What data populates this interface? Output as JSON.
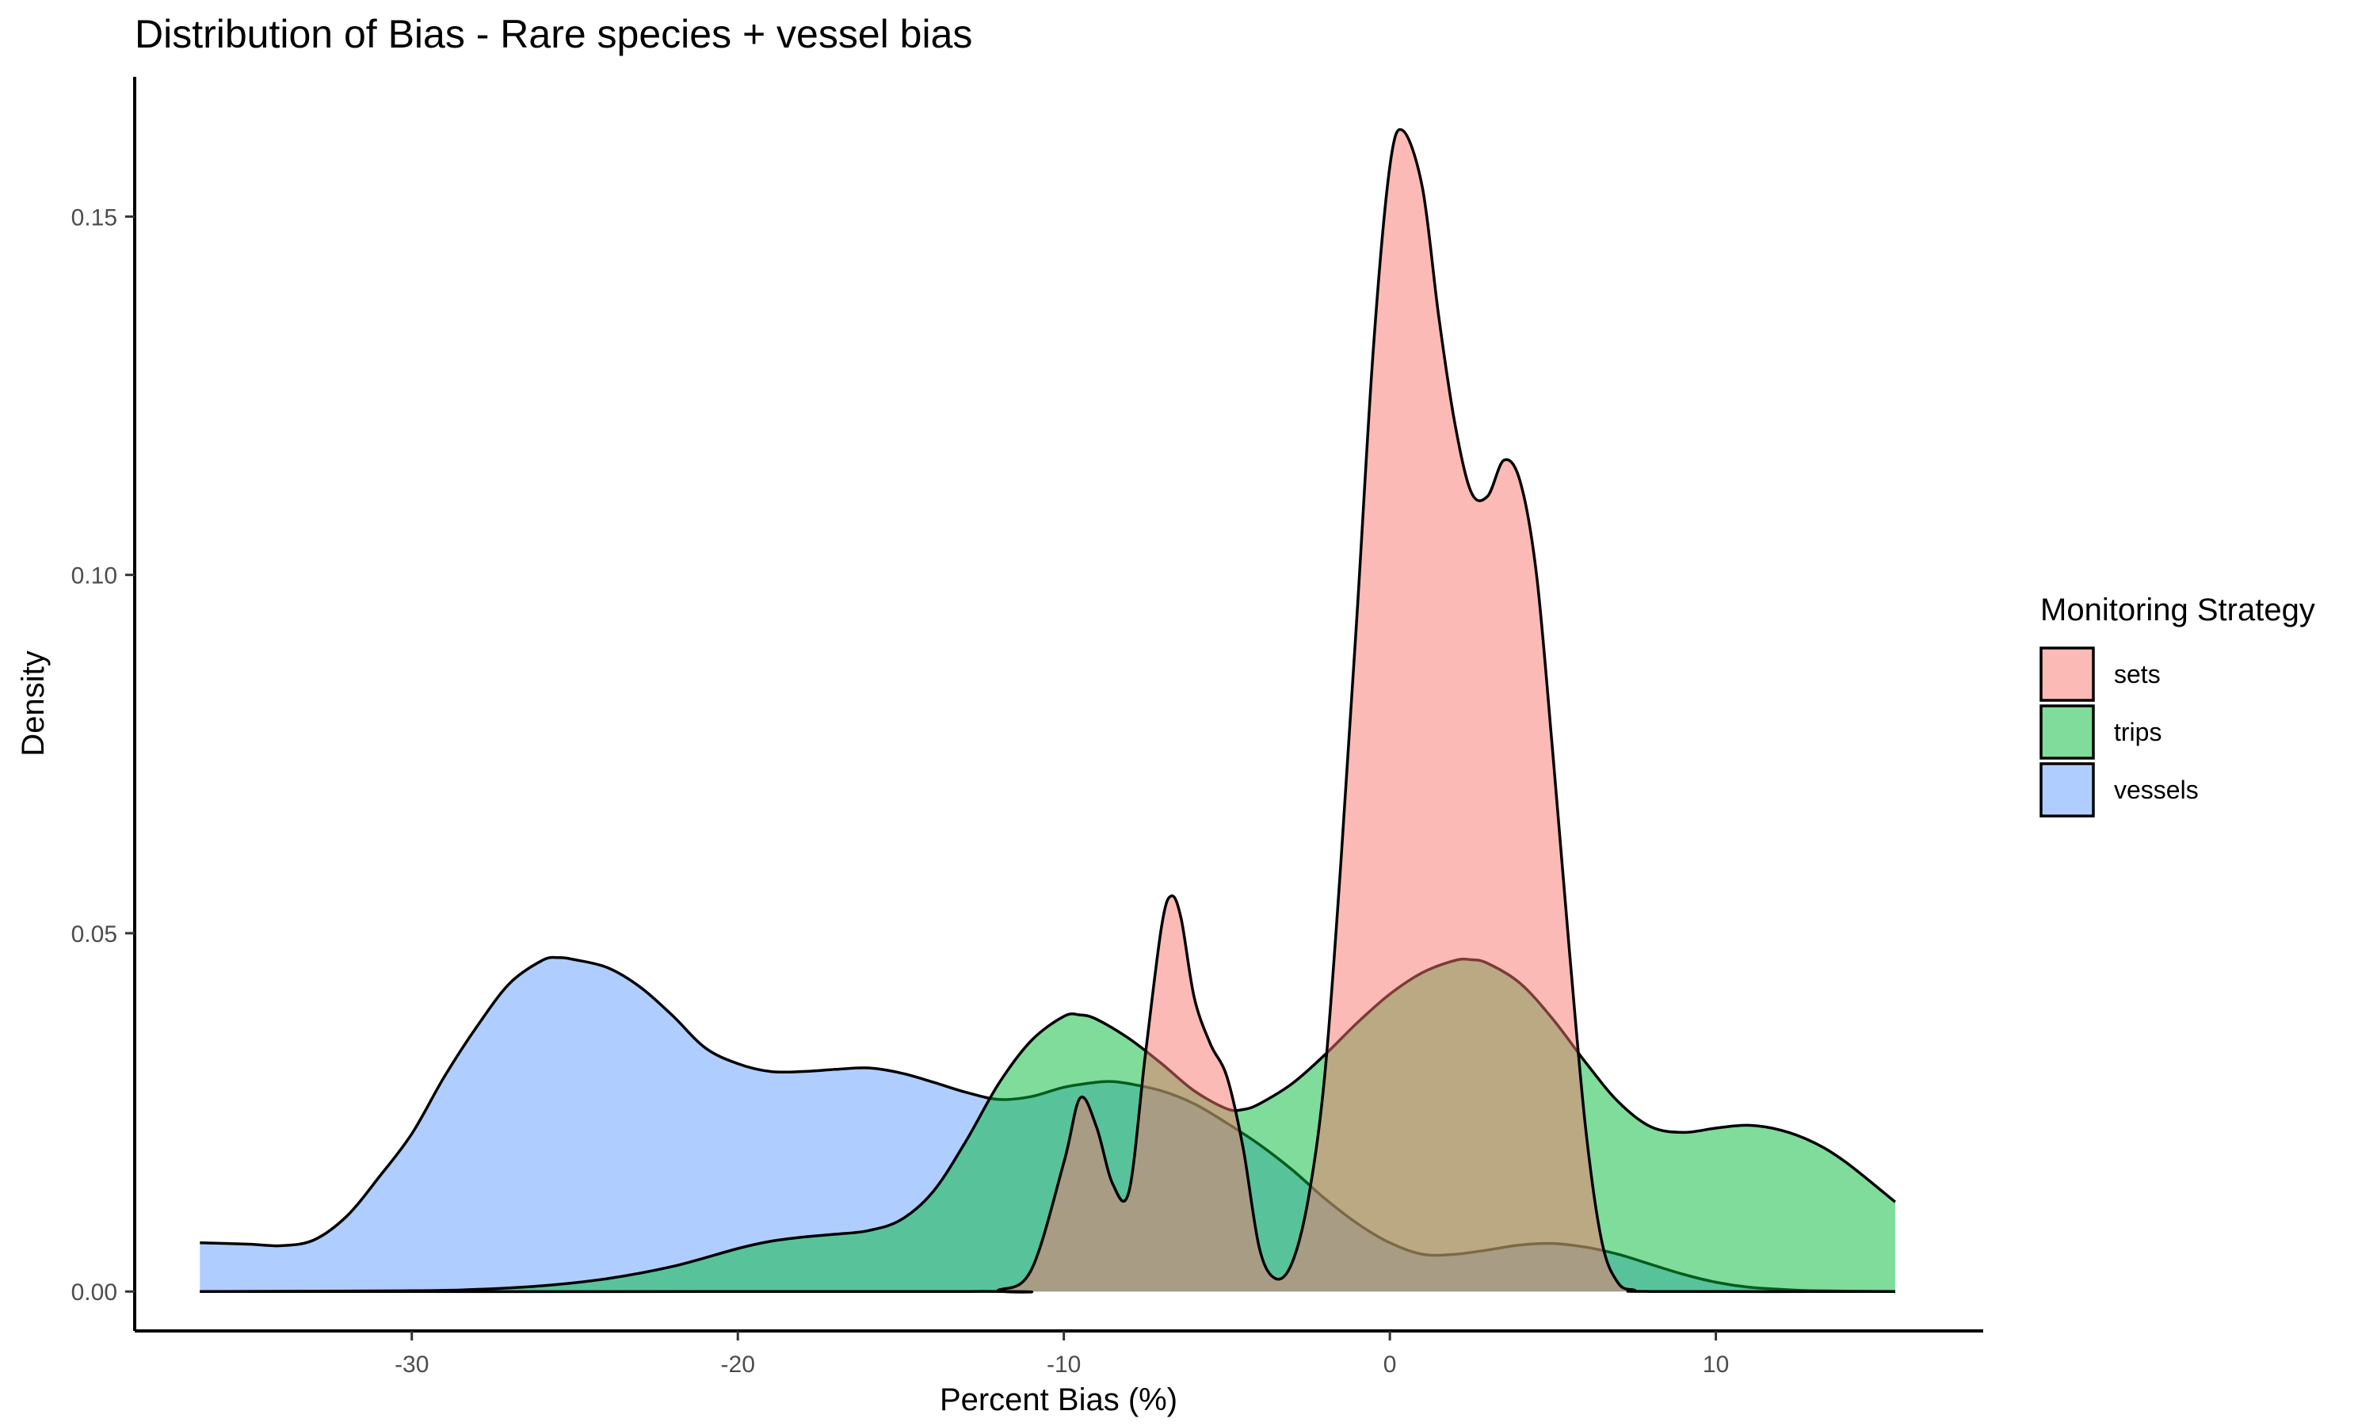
{
  "chart_data": {
    "type": "area",
    "title": "Distribution of Bias - Rare species + vessel bias",
    "xlabel": "Percent Bias (%)",
    "ylabel": "Density",
    "xlim": [
      -38.5,
      18.2
    ],
    "ylim": [
      -0.0055,
      0.1695
    ],
    "x_ticks": [
      -30,
      -20,
      -10,
      0,
      10
    ],
    "y_ticks": [
      0.0,
      0.05,
      0.1,
      0.15
    ],
    "y_tick_labels": [
      "0.00",
      "0.05",
      "0.10",
      "0.15"
    ],
    "grid": false,
    "legend": {
      "title": "Monitoring Strategy",
      "position": "right"
    },
    "series": [
      {
        "name": "vessels",
        "color": "#619CFF",
        "points": [
          [
            -36.5,
            0.0068
          ],
          [
            -35,
            0.0066
          ],
          [
            -34,
            0.0064
          ],
          [
            -33,
            0.0072
          ],
          [
            -32,
            0.0105
          ],
          [
            -31,
            0.016
          ],
          [
            -30,
            0.022
          ],
          [
            -29,
            0.03
          ],
          [
            -28,
            0.037
          ],
          [
            -27,
            0.043
          ],
          [
            -26,
            0.0462
          ],
          [
            -25.5,
            0.0466
          ],
          [
            -25,
            0.0463
          ],
          [
            -24,
            0.0452
          ],
          [
            -23,
            0.0425
          ],
          [
            -22,
            0.0385
          ],
          [
            -21,
            0.034
          ],
          [
            -20,
            0.0318
          ],
          [
            -19,
            0.0307
          ],
          [
            -18,
            0.0307
          ],
          [
            -17,
            0.031
          ],
          [
            -16,
            0.0312
          ],
          [
            -15,
            0.0305
          ],
          [
            -14,
            0.0292
          ],
          [
            -13,
            0.0278
          ],
          [
            -12,
            0.0268
          ],
          [
            -11,
            0.0272
          ],
          [
            -10,
            0.0285
          ],
          [
            -9,
            0.0292
          ],
          [
            -8.5,
            0.0293
          ],
          [
            -8,
            0.029
          ],
          [
            -7,
            0.028
          ],
          [
            -6,
            0.0262
          ],
          [
            -5,
            0.0235
          ],
          [
            -4,
            0.0205
          ],
          [
            -3,
            0.017
          ],
          [
            -2,
            0.013
          ],
          [
            -1,
            0.0095
          ],
          [
            0,
            0.0068
          ],
          [
            1,
            0.0052
          ],
          [
            2,
            0.0052
          ],
          [
            3,
            0.0058
          ],
          [
            4,
            0.0065
          ],
          [
            5,
            0.0067
          ],
          [
            6,
            0.0062
          ],
          [
            7,
            0.0052
          ],
          [
            8,
            0.0038
          ],
          [
            9,
            0.0024
          ],
          [
            10,
            0.0013
          ],
          [
            11,
            0.0006
          ],
          [
            12,
            0.0003
          ],
          [
            13,
            0.0001
          ],
          [
            15.5,
            0
          ]
        ]
      },
      {
        "name": "trips",
        "color": "#00BA38",
        "points": [
          [
            -36.5,
            0
          ],
          [
            -30,
            0.0001
          ],
          [
            -28,
            0.0003
          ],
          [
            -26,
            0.0008
          ],
          [
            -24,
            0.0018
          ],
          [
            -22,
            0.0035
          ],
          [
            -20,
            0.006
          ],
          [
            -19,
            0.007
          ],
          [
            -18,
            0.0076
          ],
          [
            -17,
            0.008
          ],
          [
            -16,
            0.0085
          ],
          [
            -15,
            0.01
          ],
          [
            -14,
            0.014
          ],
          [
            -13,
            0.021
          ],
          [
            -12,
            0.029
          ],
          [
            -11,
            0.035
          ],
          [
            -10,
            0.0384
          ],
          [
            -9.5,
            0.0386
          ],
          [
            -9,
            0.038
          ],
          [
            -8,
            0.0353
          ],
          [
            -7,
            0.0318
          ],
          [
            -6,
            0.028
          ],
          [
            -5,
            0.0255
          ],
          [
            -4.5,
            0.0254
          ],
          [
            -4,
            0.0262
          ],
          [
            -3,
            0.029
          ],
          [
            -2,
            0.033
          ],
          [
            -1,
            0.0375
          ],
          [
            0,
            0.0415
          ],
          [
            1,
            0.0445
          ],
          [
            2,
            0.0462
          ],
          [
            2.5,
            0.0463
          ],
          [
            3,
            0.0458
          ],
          [
            4,
            0.043
          ],
          [
            5,
            0.038
          ],
          [
            6,
            0.032
          ],
          [
            7,
            0.0265
          ],
          [
            8,
            0.023
          ],
          [
            9,
            0.0222
          ],
          [
            10,
            0.0228
          ],
          [
            11,
            0.0232
          ],
          [
            12,
            0.0225
          ],
          [
            13,
            0.0208
          ],
          [
            14,
            0.018
          ],
          [
            15.5,
            0.0125
          ]
        ]
      },
      {
        "name": "sets",
        "color": "#F8766D",
        "points": [
          [
            -36.5,
            0
          ],
          [
            -13,
            0
          ],
          [
            -12,
            0.0002
          ],
          [
            -11,
            0.003
          ],
          [
            -10,
            0.018
          ],
          [
            -9.5,
            0.027
          ],
          [
            -9,
            0.023
          ],
          [
            -8.5,
            0.015
          ],
          [
            -8,
            0.014
          ],
          [
            -7.5,
            0.033
          ],
          [
            -7,
            0.051
          ],
          [
            -6.7,
            0.0552
          ],
          [
            -6.4,
            0.052
          ],
          [
            -6,
            0.041
          ],
          [
            -5.5,
            0.0345
          ],
          [
            -5,
            0.03
          ],
          [
            -4.5,
            0.02
          ],
          [
            -4,
            0.006
          ],
          [
            -3.5,
            0.0018
          ],
          [
            -3,
            0.004
          ],
          [
            -2.5,
            0.013
          ],
          [
            -2,
            0.03
          ],
          [
            -1.5,
            0.06
          ],
          [
            -1,
            0.095
          ],
          [
            -0.5,
            0.132
          ],
          [
            0,
            0.157
          ],
          [
            0.4,
            0.162
          ],
          [
            1,
            0.154
          ],
          [
            1.5,
            0.136
          ],
          [
            2,
            0.121
          ],
          [
            2.5,
            0.1115
          ],
          [
            3,
            0.111
          ],
          [
            3.5,
            0.116
          ],
          [
            4,
            0.113
          ],
          [
            4.5,
            0.1
          ],
          [
            5,
            0.075
          ],
          [
            5.5,
            0.048
          ],
          [
            6,
            0.023
          ],
          [
            6.5,
            0.007
          ],
          [
            7,
            0.0012
          ],
          [
            7.5,
            0.0002
          ],
          [
            8,
            0
          ],
          [
            15.5,
            0
          ]
        ]
      }
    ]
  }
}
